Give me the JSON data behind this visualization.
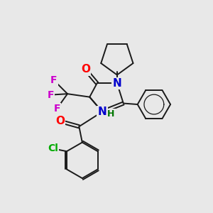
{
  "bg_color": "#e8e8e8",
  "bond_color": "#1a1a1a",
  "bond_width": 1.4,
  "atom_colors": {
    "O": "#ff0000",
    "N": "#0000cc",
    "F": "#cc00cc",
    "Cl": "#00aa00",
    "C": "#1a1a1a",
    "H": "#007700"
  }
}
